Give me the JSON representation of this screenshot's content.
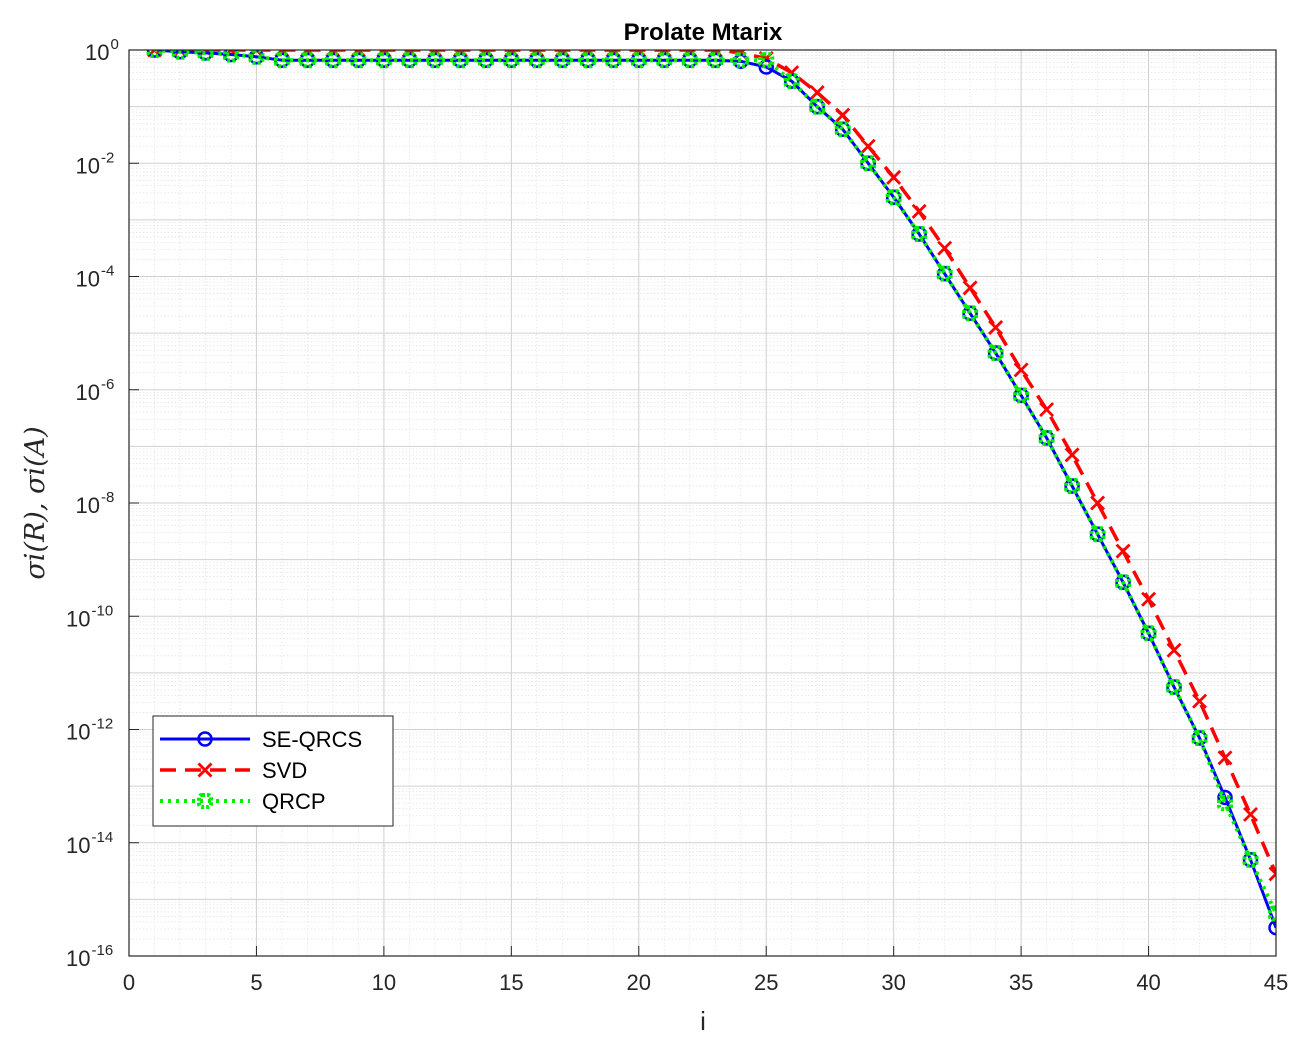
{
  "chart_data": {
    "type": "line",
    "title": "Prolate Mtarix",
    "xlabel": "i",
    "ylabel": "σi(R),  σi(A)",
    "xlim": [
      0,
      45
    ],
    "ylim_exponent": [
      -16,
      0
    ],
    "yscale": "log",
    "grid": true,
    "minor_grid": true,
    "legend_position": "lower-left",
    "x_ticks": [
      "0",
      "5",
      "10",
      "15",
      "20",
      "25",
      "30",
      "35",
      "40",
      "45"
    ],
    "y_ticks": [
      {
        "base": "10",
        "exp": "0"
      },
      {
        "base": "10",
        "exp": "-2"
      },
      {
        "base": "10",
        "exp": "-4"
      },
      {
        "base": "10",
        "exp": "-6"
      },
      {
        "base": "10",
        "exp": "-8"
      },
      {
        "base": "10",
        "exp": "-10"
      },
      {
        "base": "10",
        "exp": "-12"
      },
      {
        "base": "10",
        "exp": "-14"
      },
      {
        "base": "10",
        "exp": "-16"
      }
    ],
    "x": [
      1,
      2,
      3,
      4,
      5,
      6,
      7,
      8,
      9,
      10,
      11,
      12,
      13,
      14,
      15,
      16,
      17,
      18,
      19,
      20,
      21,
      22,
      23,
      24,
      25,
      26,
      27,
      28,
      29,
      30,
      31,
      32,
      33,
      34,
      35,
      36,
      37,
      38,
      39,
      40,
      41,
      42,
      43,
      44,
      45
    ],
    "series": [
      {
        "name": "SE-QRCS",
        "color": "#0000ff",
        "marker": "circle",
        "line": "solid",
        "log10_values": [
          0,
          -0.03,
          -0.05,
          -0.08,
          -0.12,
          -0.18,
          -0.18,
          -0.18,
          -0.18,
          -0.18,
          -0.18,
          -0.18,
          -0.18,
          -0.18,
          -0.18,
          -0.18,
          -0.18,
          -0.18,
          -0.18,
          -0.18,
          -0.18,
          -0.18,
          -0.18,
          -0.2,
          -0.3,
          -0.55,
          -1.0,
          -1.4,
          -2.0,
          -2.6,
          -3.25,
          -3.95,
          -4.65,
          -5.35,
          -6.1,
          -6.85,
          -7.7,
          -8.55,
          -9.4,
          -10.3,
          -11.25,
          -12.15,
          -13.2,
          -14.3,
          -15.5
        ]
      },
      {
        "name": "SVD",
        "color": "#ff0000",
        "marker": "x",
        "line": "dashed",
        "log10_values": [
          0,
          0,
          0,
          0,
          0,
          0,
          0,
          0,
          0,
          0,
          0,
          0,
          0,
          0,
          0,
          0,
          0,
          0,
          0,
          0,
          0,
          0,
          0,
          -0.05,
          -0.15,
          -0.4,
          -0.75,
          -1.15,
          -1.7,
          -2.25,
          -2.85,
          -3.5,
          -4.2,
          -4.9,
          -5.65,
          -6.35,
          -7.15,
          -8.0,
          -8.85,
          -9.7,
          -10.6,
          -11.5,
          -12.5,
          -13.5,
          -14.55
        ]
      },
      {
        "name": "QRCP",
        "color": "#00ee00",
        "marker": "square",
        "line": "dotted",
        "log10_values": [
          0,
          -0.03,
          -0.05,
          -0.08,
          -0.12,
          -0.18,
          -0.18,
          -0.18,
          -0.18,
          -0.18,
          -0.18,
          -0.18,
          -0.18,
          -0.18,
          -0.18,
          -0.18,
          -0.18,
          -0.18,
          -0.18,
          -0.18,
          -0.18,
          -0.18,
          -0.18,
          -0.18,
          -0.18,
          -0.55,
          -1.0,
          -1.4,
          -2.0,
          -2.6,
          -3.25,
          -3.95,
          -4.65,
          -5.35,
          -6.1,
          -6.85,
          -7.7,
          -8.55,
          -9.4,
          -10.3,
          -11.25,
          -12.15,
          -13.3,
          -14.3,
          -15.25
        ]
      }
    ]
  }
}
